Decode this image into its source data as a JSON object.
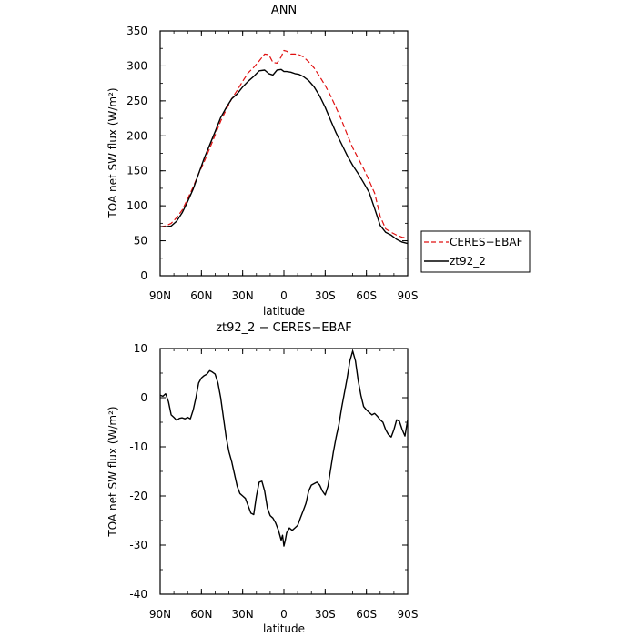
{
  "chart_data": [
    {
      "type": "line",
      "title": "ANN",
      "xlabel": "latitude",
      "ylabel": "TOA net SW flux (W/m²)",
      "xlim": [
        90,
        -90
      ],
      "ylim": [
        0,
        350
      ],
      "x_ticks": [
        {
          "value": 90,
          "label": "90N"
        },
        {
          "value": 60,
          "label": "60N"
        },
        {
          "value": 30,
          "label": "30N"
        },
        {
          "value": 0,
          "label": "0"
        },
        {
          "value": -30,
          "label": "30S"
        },
        {
          "value": -60,
          "label": "60S"
        },
        {
          "value": -90,
          "label": "90S"
        }
      ],
      "y_ticks": [
        0,
        50,
        100,
        150,
        200,
        250,
        300,
        350
      ],
      "grid": false,
      "legend": "right",
      "series": [
        {
          "name": "CERES−EBAF",
          "color": "#e01010",
          "dash": "dashed",
          "x": [
            90,
            86,
            82,
            78,
            74,
            70,
            66,
            62,
            58,
            54,
            50,
            46,
            42,
            38,
            34,
            30,
            26,
            22,
            18,
            14,
            11,
            8,
            5,
            2,
            0,
            -2,
            -5,
            -8,
            -11,
            -14,
            -18,
            -22,
            -26,
            -30,
            -34,
            -38,
            -42,
            -46,
            -50,
            -54,
            -58,
            -62,
            -66,
            -70,
            -74,
            -78,
            -82,
            -86,
            -90
          ],
          "y": [
            70,
            71,
            75,
            83,
            94,
            110,
            127,
            146,
            163,
            182,
            201,
            221,
            237,
            253,
            265,
            278,
            290,
            298,
            307,
            317,
            316,
            305,
            304,
            313,
            322,
            321,
            317,
            317,
            316,
            313,
            306,
            297,
            285,
            272,
            257,
            240,
            222,
            202,
            183,
            168,
            153,
            136,
            118,
            85,
            67,
            62,
            58,
            55,
            54
          ]
        },
        {
          "name": "zt92_2",
          "color": "#000000",
          "dash": "solid",
          "x": [
            90,
            86,
            82,
            78,
            74,
            70,
            66,
            62,
            58,
            54,
            50,
            46,
            42,
            38,
            34,
            30,
            26,
            22,
            18,
            14,
            11,
            8,
            5,
            2,
            0,
            -2,
            -5,
            -8,
            -11,
            -14,
            -18,
            -22,
            -26,
            -30,
            -34,
            -38,
            -42,
            -46,
            -50,
            -54,
            -58,
            -62,
            -66,
            -70,
            -74,
            -78,
            -82,
            -86,
            -90
          ],
          "y": [
            70,
            70,
            71,
            78,
            90,
            106,
            124,
            146,
            168,
            187,
            206,
            226,
            240,
            253,
            260,
            270,
            278,
            285,
            293,
            294,
            289,
            287,
            294,
            295,
            292,
            292,
            291,
            289,
            288,
            285,
            279,
            270,
            257,
            241,
            222,
            204,
            188,
            172,
            158,
            146,
            133,
            119,
            96,
            72,
            62,
            58,
            52,
            48,
            46
          ]
        }
      ]
    },
    {
      "type": "line",
      "title": "zt92_2 − CERES−EBAF",
      "xlabel": "latitude",
      "ylabel": "TOA net SW flux (W/m²)",
      "xlim": [
        90,
        -90
      ],
      "ylim": [
        -40,
        10
      ],
      "x_ticks": [
        {
          "value": 90,
          "label": "90N"
        },
        {
          "value": 60,
          "label": "60N"
        },
        {
          "value": 30,
          "label": "30N"
        },
        {
          "value": 0,
          "label": "0"
        },
        {
          "value": -30,
          "label": "30S"
        },
        {
          "value": -60,
          "label": "60S"
        },
        {
          "value": -90,
          "label": "90S"
        }
      ],
      "y_ticks": [
        -40,
        -30,
        -20,
        -10,
        0,
        10
      ],
      "grid": false,
      "series": [
        {
          "color": "#000000",
          "dash": "solid",
          "x": [
            90,
            88,
            86,
            84,
            82,
            80,
            78,
            76,
            74,
            72,
            70,
            68,
            66,
            64,
            62,
            60,
            58,
            56,
            54,
            52,
            50,
            48,
            46,
            44,
            42,
            40,
            38,
            36,
            34,
            32,
            30,
            28,
            26,
            24,
            22,
            20,
            18,
            16,
            14,
            12,
            10,
            8,
            6,
            4,
            2,
            1,
            0,
            -1,
            -2,
            -4,
            -6,
            -8,
            -10,
            -12,
            -14,
            -16,
            -18,
            -20,
            -22,
            -24,
            -26,
            -28,
            -30,
            -32,
            -34,
            -36,
            -38,
            -40,
            -42,
            -44,
            -46,
            -48,
            -50,
            -52,
            -54,
            -56,
            -58,
            -60,
            -62,
            -64,
            -66,
            -68,
            -70,
            -72,
            -74,
            -76,
            -78,
            -80,
            -82,
            -84,
            -86,
            -88,
            -90
          ],
          "y": [
            0.5,
            0.3,
            0.8,
            -0.8,
            -3.5,
            -4.0,
            -4.6,
            -4.2,
            -4.1,
            -4.3,
            -4.0,
            -4.3,
            -2.5,
            0.0,
            3.0,
            4.0,
            4.5,
            4.8,
            5.5,
            5.2,
            4.8,
            3.0,
            0.0,
            -4.0,
            -8.0,
            -11.0,
            -13.0,
            -15.5,
            -18.0,
            -19.5,
            -20.0,
            -20.5,
            -22.0,
            -23.5,
            -23.8,
            -20.0,
            -17.2,
            -17.0,
            -19.0,
            -22.5,
            -24.0,
            -24.5,
            -25.5,
            -27.0,
            -29.0,
            -28.0,
            -30.2,
            -29.0,
            -27.5,
            -26.5,
            -27.0,
            -26.5,
            -26.0,
            -24.5,
            -23.0,
            -21.5,
            -19.0,
            -17.8,
            -17.5,
            -17.2,
            -17.8,
            -19.0,
            -19.8,
            -18.0,
            -14.5,
            -11.0,
            -8.0,
            -5.5,
            -2.0,
            1.0,
            4.0,
            7.5,
            9.5,
            7.5,
            3.5,
            0.5,
            -1.8,
            -2.5,
            -3.0,
            -3.5,
            -3.2,
            -3.8,
            -4.5,
            -5.0,
            -6.5,
            -7.5,
            -8.0,
            -6.5,
            -4.5,
            -4.8,
            -6.5,
            -7.8,
            -4.5
          ]
        }
      ]
    }
  ]
}
